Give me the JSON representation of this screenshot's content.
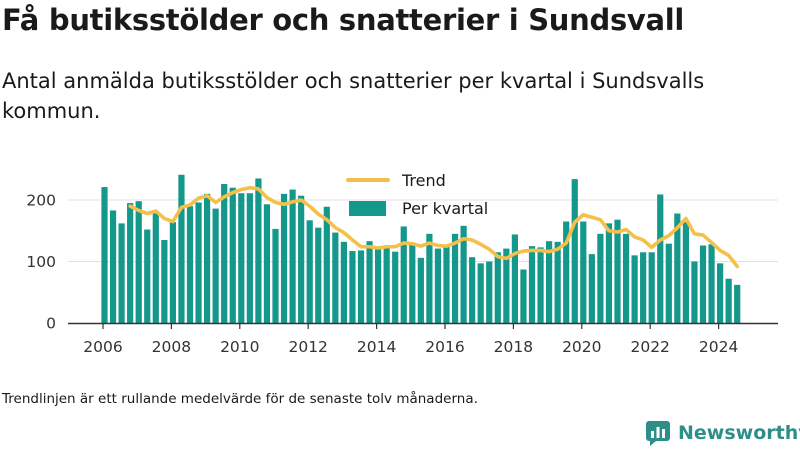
{
  "title": "Få butiksstölder och snatterier i Sundsvall",
  "subtitle": "Antal anmälda butiksstölder och snatterier per kvartal i Sundsvalls kommun.",
  "footnote": "Trendlinjen är ett rullande medelvärde för de senaste tolv månaderna.",
  "brand": {
    "name": "Newsworthy",
    "color": "#2e8f8a",
    "icon": "newsworthy-logo-icon"
  },
  "chart_data": {
    "type": "bar",
    "title": "",
    "xlabel": "",
    "ylabel": "",
    "ylim": [
      0,
      250
    ],
    "xlim": [
      2005.5,
      2025.2
    ],
    "y_ticks": [
      0,
      100,
      200
    ],
    "x_ticks": [
      2006,
      2008,
      2010,
      2012,
      2014,
      2016,
      2018,
      2020,
      2022,
      2024
    ],
    "grid": "horizontal",
    "legend_position": "top-center",
    "colors": {
      "bars": "#14988c",
      "trend": "#f5c04a",
      "axis": "#333333",
      "grid": "#e2e2e2"
    },
    "quarters": [
      "2006 Q1",
      "2006 Q2",
      "2006 Q3",
      "2006 Q4",
      "2007 Q1",
      "2007 Q2",
      "2007 Q3",
      "2007 Q4",
      "2008 Q1",
      "2008 Q2",
      "2008 Q3",
      "2008 Q4",
      "2009 Q1",
      "2009 Q2",
      "2009 Q3",
      "2009 Q4",
      "2010 Q1",
      "2010 Q2",
      "2010 Q3",
      "2010 Q4",
      "2011 Q1",
      "2011 Q2",
      "2011 Q3",
      "2011 Q4",
      "2012 Q1",
      "2012 Q2",
      "2012 Q3",
      "2012 Q4",
      "2013 Q1",
      "2013 Q2",
      "2013 Q3",
      "2013 Q4",
      "2014 Q1",
      "2014 Q2",
      "2014 Q3",
      "2014 Q4",
      "2015 Q1",
      "2015 Q2",
      "2015 Q3",
      "2015 Q4",
      "2016 Q1",
      "2016 Q2",
      "2016 Q3",
      "2016 Q4",
      "2017 Q1",
      "2017 Q2",
      "2017 Q3",
      "2017 Q4",
      "2018 Q1",
      "2018 Q2",
      "2018 Q3",
      "2018 Q4",
      "2019 Q1",
      "2019 Q2",
      "2019 Q3",
      "2019 Q4",
      "2020 Q1",
      "2020 Q2",
      "2020 Q3",
      "2020 Q4",
      "2021 Q1",
      "2021 Q2",
      "2021 Q3",
      "2021 Q4",
      "2022 Q1",
      "2022 Q2",
      "2022 Q3",
      "2022 Q4",
      "2023 Q1",
      "2023 Q2",
      "2023 Q3",
      "2023 Q4",
      "2024 Q1",
      "2024 Q2",
      "2024 Q3"
    ],
    "series": [
      {
        "name": "Per kvartal",
        "kind": "bar",
        "values": [
          221,
          183,
          162,
          195,
          198,
          152,
          180,
          135,
          164,
          241,
          190,
          196,
          210,
          186,
          226,
          220,
          211,
          211,
          235,
          193,
          153,
          210,
          217,
          207,
          167,
          155,
          189,
          147,
          132,
          117,
          118,
          133,
          121,
          124,
          116,
          157,
          129,
          106,
          145,
          121,
          127,
          145,
          158,
          107,
          97,
          100,
          115,
          121,
          144,
          87,
          125,
          123,
          133,
          132,
          165,
          234,
          165,
          112,
          145,
          162,
          168,
          145,
          110,
          115,
          115,
          209,
          129,
          178,
          164,
          100,
          126,
          128,
          97,
          72,
          62
        ]
      },
      {
        "name": "Trend",
        "kind": "line",
        "values": [
          null,
          null,
          null,
          190,
          183,
          178,
          182,
          170,
          165,
          188,
          192,
          203,
          207,
          196,
          205,
          212,
          217,
          220,
          218,
          204,
          196,
          193,
          197,
          200,
          190,
          177,
          168,
          155,
          147,
          135,
          124,
          124,
          122,
          124,
          124,
          130,
          129,
          125,
          130,
          126,
          125,
          130,
          137,
          135,
          128,
          120,
          108,
          105,
          113,
          117,
          118,
          118,
          116,
          120,
          130,
          164,
          176,
          172,
          168,
          150,
          148,
          152,
          140,
          135,
          123,
          135,
          142,
          155,
          170,
          145,
          143,
          131,
          118,
          110,
          92
        ]
      }
    ]
  }
}
